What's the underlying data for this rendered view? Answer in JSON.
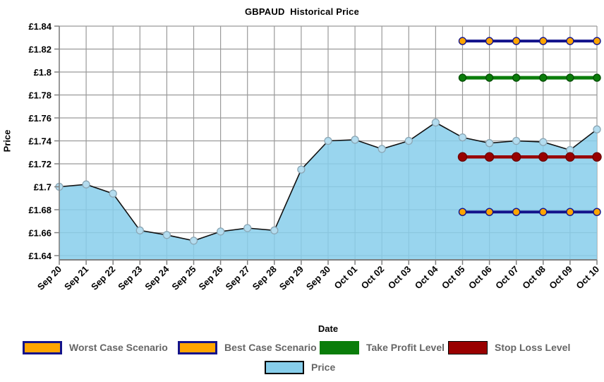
{
  "chart_data": {
    "type": "area",
    "title": "GBPAUD  Historical Price",
    "xlabel": "Date",
    "ylabel": "Price",
    "currency_prefix": "£",
    "ylim": [
      1.64,
      1.84
    ],
    "grid": true,
    "legend_position": "bottom",
    "categories": [
      "Sep 20",
      "Sep 21",
      "Sep 22",
      "Sep 23",
      "Sep 24",
      "Sep 25",
      "Sep 26",
      "Sep 27",
      "Sep 28",
      "Sep 29",
      "Sep 30",
      "Oct 01",
      "Oct 02",
      "Oct 03",
      "Oct 04",
      "Oct 05",
      "Oct 06",
      "Oct 07",
      "Oct 08",
      "Oct 09",
      "Oct 10"
    ],
    "y_ticks": [
      {
        "value": 1.84,
        "label": "£1.84"
      },
      {
        "value": 1.82,
        "label": "£1.82"
      },
      {
        "value": 1.8,
        "label": "£1.8"
      },
      {
        "value": 1.78,
        "label": "£1.78"
      },
      {
        "value": 1.76,
        "label": "£1.76"
      },
      {
        "value": 1.74,
        "label": "£1.74"
      },
      {
        "value": 1.72,
        "label": "£1.72"
      },
      {
        "value": 1.7,
        "label": "£1.7"
      },
      {
        "value": 1.68,
        "label": "£1.68"
      },
      {
        "value": 1.66,
        "label": "£1.66"
      },
      {
        "value": 1.64,
        "label": "£1.64"
      }
    ],
    "series": [
      {
        "name": "Price",
        "type": "area",
        "values": [
          1.7,
          1.702,
          1.694,
          1.662,
          1.658,
          1.653,
          1.661,
          1.664,
          1.662,
          1.715,
          1.74,
          1.741,
          1.733,
          1.74,
          1.756,
          1.743,
          1.738,
          1.74,
          1.739,
          1.732,
          1.75
        ],
        "area_color": "#87CEEB",
        "line_color": "#111111",
        "marker_fill": "#B3DCEF",
        "marker_stroke": "#8BA6B4"
      },
      {
        "name": "Worst Case Scenario",
        "type": "level-line",
        "level": 1.678,
        "from": "Oct 05",
        "to": "Oct 10",
        "line_color": "#13138B",
        "marker_fill": "#FFA500",
        "marker_stroke": "#13138B",
        "line_width": 4,
        "marker_radius": 5
      },
      {
        "name": "Best Case Scenario",
        "type": "level-line",
        "level": 1.827,
        "from": "Oct 05",
        "to": "Oct 10",
        "line_color": "#13138B",
        "marker_fill": "#FFA500",
        "marker_stroke": "#13138B",
        "line_width": 4,
        "marker_radius": 5
      },
      {
        "name": "Take Profit Level",
        "type": "level-line",
        "level": 1.795,
        "from": "Oct 05",
        "to": "Oct 10",
        "line_color": "#0A7D0A",
        "marker_fill": "#0A7D0A",
        "marker_stroke": "#064F06",
        "line_width": 5,
        "marker_radius": 5
      },
      {
        "name": "Stop Loss Level",
        "type": "level-line",
        "level": 1.726,
        "from": "Oct 05",
        "to": "Oct 10",
        "line_color": "#990000",
        "marker_fill": "#990000",
        "marker_stroke": "#6E0000",
        "line_width": 4.5,
        "marker_radius": 6
      }
    ]
  },
  "legend": {
    "items": [
      {
        "label": "Worst Case Scenario",
        "swatch": {
          "fill": "#FFA500",
          "border": "3px solid #13138B"
        }
      },
      {
        "label": "Best Case Scenario",
        "swatch": {
          "fill": "#FFA500",
          "border": "3px solid #13138B"
        }
      },
      {
        "label": "Take Profit Level",
        "swatch": {
          "fill": "#0A7D0A",
          "border": "none"
        }
      },
      {
        "label": "Stop Loss Level",
        "swatch": {
          "fill": "#990000",
          "border": "1px solid #000000"
        }
      },
      {
        "label": "Price",
        "swatch": {
          "fill": "#87CEEB",
          "border": "2px solid #000000"
        }
      }
    ]
  },
  "style": {
    "grid_color": "#9A9A9A",
    "axis_color": "#808080",
    "background": "#FFFFFF"
  }
}
